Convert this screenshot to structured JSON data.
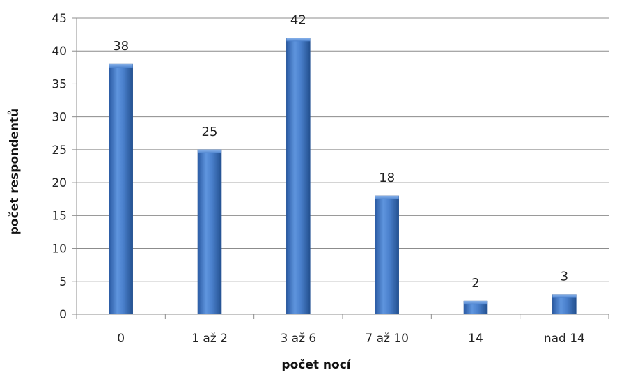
{
  "chart_data": {
    "type": "bar",
    "categories": [
      "0",
      "1 až 2",
      "3 až 6",
      "7 až 10",
      "14",
      "nad 14"
    ],
    "values": [
      38,
      25,
      42,
      18,
      2,
      3
    ],
    "title": "",
    "xlabel": "počet nocí",
    "ylabel": "počet respondentů",
    "ylim": [
      0,
      45
    ],
    "yticks": [
      0,
      5,
      10,
      15,
      20,
      25,
      30,
      35,
      40,
      45
    ],
    "grid": true,
    "legend": "none",
    "data_labels": true,
    "bar_color": "#3a72c2"
  }
}
